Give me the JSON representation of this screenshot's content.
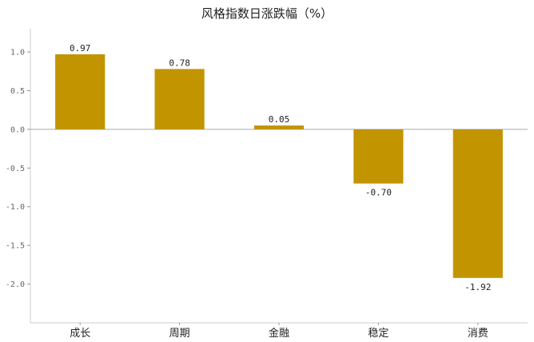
{
  "chart_data": {
    "type": "bar",
    "title": "风格指数日涨跌幅（%）",
    "categories": [
      "成长",
      "周期",
      "金融",
      "稳定",
      "消费"
    ],
    "values": [
      0.97,
      0.78,
      0.05,
      -0.7,
      -1.92
    ],
    "value_labels": [
      "0.97",
      "0.78",
      "0.05",
      "-0.70",
      "-1.92"
    ],
    "yticks": [
      1.0,
      0.5,
      0.0,
      -0.5,
      -1.0,
      -1.5,
      -2.0
    ],
    "ytick_labels": [
      "1.0",
      "0.5",
      "0.0",
      "-0.5",
      "-1.0",
      "-1.5",
      "-2.0"
    ],
    "ylim": [
      -2.5,
      1.3
    ],
    "xlabel": "",
    "ylabel": "",
    "grid": false,
    "legend": "none",
    "bar_color": "#C29500",
    "zero_line_color": "#aaaaaa"
  }
}
